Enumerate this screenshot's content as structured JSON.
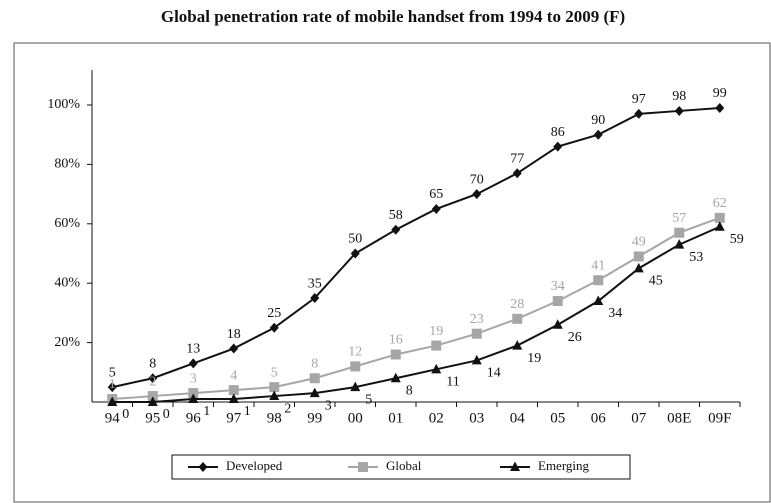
{
  "chart_data": {
    "type": "line",
    "title": "Global penetration rate of mobile handset from 1994 to 2009 (F)",
    "categories": [
      "94",
      "95",
      "96",
      "97",
      "98",
      "99",
      "00",
      "01",
      "02",
      "03",
      "04",
      "05",
      "06",
      "07",
      "08E",
      "09F"
    ],
    "series": [
      {
        "name": "Developed",
        "color": "#111111",
        "marker": "diamond",
        "values": [
          5,
          8,
          13,
          18,
          25,
          35,
          50,
          58,
          65,
          70,
          77,
          86,
          90,
          97,
          98,
          99
        ]
      },
      {
        "name": "Global",
        "color": "#a6a6a6",
        "marker": "square",
        "values": [
          1,
          2,
          3,
          4,
          5,
          8,
          12,
          16,
          19,
          23,
          28,
          34,
          41,
          49,
          57,
          62
        ]
      },
      {
        "name": "Emerging",
        "color": "#111111",
        "marker": "triangle",
        "values": [
          0,
          0,
          1,
          1,
          2,
          3,
          5,
          8,
          11,
          14,
          19,
          26,
          34,
          45,
          53,
          59
        ]
      }
    ],
    "ylim": [
      0,
      100
    ],
    "yticks": [
      {
        "value": 20,
        "label": "20%"
      },
      {
        "value": 40,
        "label": "40%"
      },
      {
        "value": 60,
        "label": "60%"
      },
      {
        "value": 80,
        "label": "80%"
      },
      {
        "value": 100,
        "label": "100%"
      }
    ],
    "grid": false,
    "legend": "bottom"
  }
}
